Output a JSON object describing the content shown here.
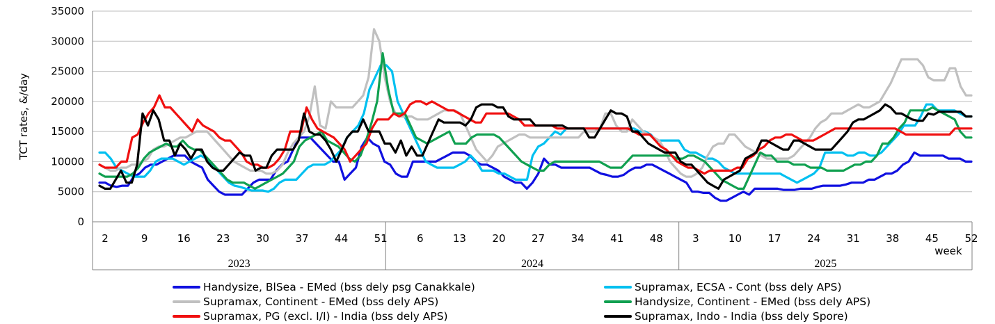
{
  "chart_data": {
    "type": "line",
    "ylabel": "TCT rates, &/day",
    "xlabel": "week",
    "ylim": [
      0,
      35000
    ],
    "yticks": [
      "0",
      "5000",
      "10000",
      "15000",
      "20000",
      "25000",
      "30000",
      "35000"
    ],
    "grid": "horizontal",
    "legend_position": "bottom",
    "weeks_per_year": 52,
    "years": [
      "2023",
      "2024",
      "2025"
    ],
    "week_ticks": [
      "2",
      "9",
      "16",
      "23",
      "30",
      "37",
      "44",
      "51",
      "6",
      "13",
      "20",
      "27",
      "34",
      "41",
      "48",
      "3",
      "10",
      "17",
      "24",
      "31",
      "38",
      "45",
      "52"
    ],
    "x_index_note_none": "",
    "series": [
      {
        "name": "Handysize, BlSea - EMed (bss dely psg Canakkale)",
        "color": "#1010e0",
        "values": [
          6500,
          6500,
          6000,
          5800,
          6000,
          6000,
          7500,
          8000,
          9000,
          9500,
          9500,
          10000,
          10500,
          11000,
          11000,
          11000,
          10000,
          9500,
          9000,
          7000,
          6000,
          5000,
          4500,
          4500,
          4500,
          4500,
          5500,
          6500,
          7000,
          7000,
          7000,
          8500,
          9500,
          10000,
          12000,
          14000,
          14000,
          14000,
          13000,
          12000,
          11000,
          10000,
          10000,
          7000,
          8000,
          9000,
          12500,
          14000,
          13000,
          12500,
          10000,
          9500,
          8000,
          7500,
          7500,
          10000,
          10000,
          10000,
          10000,
          10000,
          10500,
          11000,
          11500,
          11500,
          11500,
          11000,
          10000,
          9500,
          9500,
          9000,
          8500,
          7500,
          7000,
          6500,
          6500,
          5500,
          6500,
          8000,
          10500,
          9500,
          9500,
          9000,
          9000,
          9000,
          9000,
          9000,
          9000,
          8500,
          8000,
          7800,
          7500,
          7500,
          7800,
          8500,
          9000,
          9000,
          9500,
          9500,
          9000,
          8500,
          8000,
          7500,
          7000,
          6500,
          5000,
          5000,
          4800,
          4800,
          4000,
          3500,
          3500,
          4000,
          4500,
          5000,
          4500,
          5500,
          5500,
          5500,
          5500,
          5500,
          5300,
          5300,
          5300,
          5500,
          5500,
          5500,
          5800,
          6000,
          6000,
          6000,
          6000,
          6200,
          6500,
          6500,
          6500,
          7000,
          7000,
          7500,
          8000,
          8000,
          8500,
          9500,
          10000,
          11500,
          11000,
          11000,
          11000,
          11000,
          11000,
          10500,
          10500,
          10500,
          10000,
          10000
        ]
      },
      {
        "name": "Supramax, ECSA - Cont (bss dely APS)",
        "color": "#00c0f0",
        "values": [
          11500,
          11500,
          10500,
          9000,
          8500,
          8000,
          7500,
          7500,
          7500,
          8500,
          10000,
          10500,
          10500,
          10500,
          10000,
          9500,
          10000,
          10500,
          11000,
          10500,
          9500,
          8500,
          7500,
          6500,
          6000,
          5800,
          5500,
          5200,
          5200,
          5200,
          5000,
          5500,
          6500,
          7000,
          7000,
          7000,
          8000,
          9000,
          9500,
          9500,
          9500,
          10000,
          11000,
          12000,
          14000,
          15000,
          16000,
          18000,
          22000,
          24000,
          26000,
          26000,
          25000,
          20000,
          18000,
          16000,
          14000,
          12000,
          10000,
          9500,
          9000,
          9000,
          9000,
          9000,
          9500,
          10000,
          11000,
          10000,
          8500,
          8500,
          8500,
          8000,
          8000,
          7500,
          7000,
          7000,
          7000,
          11000,
          12500,
          13000,
          14000,
          15000,
          14500,
          15500,
          15500,
          15500,
          15500,
          15500,
          15500,
          15500,
          15500,
          15500,
          15500,
          15500,
          15500,
          15500,
          15000,
          15000,
          14500,
          13500,
          13500,
          13500,
          13500,
          13500,
          12000,
          11500,
          11500,
          11000,
          10500,
          10500,
          10000,
          9000,
          8500,
          8000,
          8000,
          8000,
          8000,
          8000,
          8000,
          8000,
          8000,
          8000,
          7500,
          7000,
          6500,
          7000,
          7500,
          8000,
          9000,
          11500,
          11500,
          11500,
          11500,
          11000,
          11000,
          11500,
          11500,
          11000,
          11000,
          11500,
          12500,
          13500,
          14500,
          16000,
          16000,
          16000,
          17500,
          19500,
          19500,
          18500,
          18500,
          18500,
          18500,
          18000,
          17500,
          17500
        ]
      },
      {
        "name": "Supramax, Continent - EMed (bss dely APS)",
        "color": "#c0c0c0",
        "values": [
          9500,
          9000,
          8500,
          8500,
          9000,
          9000,
          9500,
          9500,
          10000,
          10500,
          12000,
          12500,
          12500,
          13000,
          13500,
          14000,
          14000,
          14500,
          15000,
          15000,
          15000,
          14000,
          13000,
          12000,
          11000,
          10000,
          9500,
          9000,
          8500,
          8500,
          8500,
          8000,
          8000,
          8500,
          9500,
          11500,
          13000,
          14000,
          15000,
          17500,
          22500,
          16000,
          15500,
          20000,
          19000,
          19000,
          19000,
          19000,
          20000,
          21000,
          24000,
          32000,
          30000,
          24000,
          20000,
          18000,
          17500,
          17500,
          17500,
          17000,
          17000,
          17000,
          17500,
          18000,
          18500,
          18500,
          18500,
          18000,
          16000,
          14000,
          12000,
          11000,
          10000,
          11000,
          12500,
          13000,
          13500,
          14000,
          14500,
          14500,
          14000,
          14000,
          14000,
          14000,
          14000,
          14000,
          14000,
          14000,
          14000,
          14000,
          15000,
          15000,
          15000,
          15500,
          18000,
          18000,
          16000,
          15000,
          15000,
          17000,
          16000,
          15000,
          14500,
          14000,
          13500,
          12000,
          10000,
          9000,
          8000,
          7500,
          7500,
          8000,
          9000,
          11000,
          12500,
          13000,
          13000,
          14500,
          14500,
          13500,
          12500,
          12000,
          11500,
          11000,
          10500,
          10500,
          10500,
          10500,
          10500,
          11000,
          12000,
          13000,
          14000,
          15500,
          16500,
          17000,
          18000,
          18000,
          18000,
          18500,
          19000,
          19500,
          19000,
          19000,
          19500,
          20000,
          21500,
          23000,
          25000,
          27000,
          27000,
          27000,
          27000,
          26000,
          24000,
          23500,
          23500,
          23500,
          25500,
          25500,
          22500,
          21000,
          21000
        ]
      },
      {
        "name": "Handysize, Continent - EMed (bss dely APS)",
        "color": "#10a050",
        "values": [
          8000,
          7500,
          7500,
          7500,
          7500,
          7500,
          8000,
          9000,
          10500,
          11500,
          12000,
          12500,
          13000,
          12500,
          12500,
          13500,
          12500,
          12000,
          12000,
          11000,
          10000,
          9000,
          8000,
          7000,
          6500,
          6500,
          6500,
          6000,
          5500,
          6000,
          6500,
          7000,
          7500,
          8000,
          9000,
          10000,
          12500,
          13500,
          14000,
          14500,
          15000,
          13500,
          13000,
          12500,
          11500,
          10500,
          10000,
          11000,
          13500,
          16500,
          20000,
          28000,
          22000,
          18000,
          18000,
          18000,
          16000,
          14000,
          13500,
          13000,
          13500,
          14000,
          14500,
          15000,
          13000,
          13000,
          13000,
          14000,
          14500,
          14500,
          14500,
          14500,
          14000,
          13000,
          12000,
          11000,
          10000,
          9500,
          9000,
          8500,
          8500,
          9500,
          10000,
          10000,
          10000,
          10000,
          10000,
          10000,
          10000,
          10000,
          10000,
          9500,
          9000,
          9000,
          9000,
          10000,
          11000,
          11000,
          11000,
          11000,
          11000,
          11000,
          11000,
          11000,
          10500,
          10500,
          11000,
          11000,
          10500,
          10000,
          9000,
          8000,
          7000,
          6500,
          6000,
          5500,
          5500,
          7500,
          9500,
          11500,
          11000,
          11000,
          10000,
          10000,
          10000,
          9500,
          9500,
          9500,
          9000,
          9000,
          9000,
          8500,
          8500,
          8500,
          8500,
          9000,
          9500,
          9500,
          10000,
          10000,
          11000,
          13000,
          13000,
          14000,
          15500,
          16500,
          18500,
          18500,
          18500,
          18500,
          19000,
          18500,
          18000,
          17500,
          17000,
          15000,
          14000,
          14000
        ]
      },
      {
        "name": "Supramax, PG (excl. I/I) - India (bss dely APS)",
        "color": "#f01010",
        "values": [
          9500,
          9000,
          9000,
          9000,
          10000,
          10000,
          14000,
          14500,
          16500,
          18000,
          19000,
          21000,
          19000,
          19000,
          18000,
          17000,
          16000,
          15000,
          17000,
          16000,
          15500,
          15000,
          14000,
          13500,
          13500,
          12500,
          11500,
          10000,
          9500,
          9500,
          9000,
          9000,
          9500,
          10500,
          12000,
          15000,
          15000,
          15000,
          19000,
          17000,
          15500,
          15000,
          14500,
          14000,
          13000,
          12000,
          10000,
          11000,
          12000,
          13000,
          15500,
          17000,
          17000,
          17000,
          18000,
          17500,
          18000,
          19500,
          20000,
          20000,
          19500,
          20000,
          19500,
          19000,
          18500,
          18500,
          18000,
          17500,
          17000,
          16500,
          16500,
          18000,
          18000,
          18000,
          18000,
          18000,
          17500,
          17000,
          16000,
          16000,
          16000,
          16000,
          16000,
          16000,
          15500,
          15500,
          15500,
          15500,
          15500,
          15500,
          15500,
          15500,
          15500,
          15500,
          15500,
          15500,
          15500,
          15500,
          15000,
          14500,
          14500,
          14500,
          13500,
          12500,
          12000,
          11000,
          10000,
          9500,
          9000,
          9000,
          8500,
          8000,
          8500,
          8500,
          8500,
          8500,
          8500,
          9000,
          9000,
          10500,
          11000,
          12000,
          12500,
          13500,
          14000,
          14000,
          14500,
          14500,
          14000,
          13500,
          13500,
          13500,
          14000,
          14500,
          15000,
          15500,
          15500,
          15500,
          15500,
          15500,
          15500,
          15500,
          15500,
          15500,
          15500,
          15500,
          15500,
          15000,
          14500,
          14500,
          14500,
          14500,
          14500,
          14500,
          14500,
          14500,
          14500,
          15500,
          15500,
          15500,
          15500
        ]
      },
      {
        "name": "Supramax, Indo - India (bss dely Spore)",
        "color": "#000000",
        "values": [
          6000,
          5500,
          5500,
          7000,
          8500,
          6500,
          6500,
          9500,
          18000,
          16000,
          18500,
          17000,
          13500,
          13500,
          11000,
          13000,
          12000,
          10500,
          12000,
          12000,
          10000,
          9000,
          8500,
          8500,
          9500,
          10500,
          11500,
          11000,
          11000,
          8500,
          9000,
          9000,
          11000,
          12000,
          12000,
          12000,
          12000,
          13500,
          18000,
          15000,
          14500,
          14500,
          13500,
          12000,
          10000,
          12000,
          14000,
          15000,
          15000,
          17000,
          15000,
          15000,
          15000,
          13000,
          13000,
          11500,
          13500,
          11000,
          12500,
          11000,
          11000,
          13000,
          15000,
          17000,
          16500,
          16500,
          16500,
          16500,
          16000,
          17000,
          19000,
          19500,
          19500,
          19500,
          19000,
          19000,
          17500,
          17000,
          17000,
          17000,
          17000,
          16000,
          16000,
          16000,
          16000,
          16000,
          16000,
          15500,
          15500,
          15500,
          15500,
          14000,
          14000,
          15500,
          17000,
          18500,
          18000,
          18000,
          17500,
          15000,
          15000,
          14000,
          13000,
          12500,
          12000,
          11500,
          11500,
          11500,
          10000,
          9500,
          9500,
          8500,
          7500,
          6500,
          6000,
          5500,
          7000,
          7500,
          8000,
          8500,
          10500,
          11000,
          11500,
          13500,
          13500,
          13000,
          12500,
          12000,
          12000,
          13500,
          13500,
          13000,
          12500,
          12000,
          12000,
          12000,
          12000,
          13000,
          14000,
          15000,
          16500,
          17000,
          17000,
          17500,
          18000,
          18500,
          19500,
          19000,
          18000,
          18000,
          17500,
          17000,
          16800,
          16800,
          18000,
          17800,
          18300,
          18300,
          18300,
          18300,
          18300,
          17500,
          17500
        ]
      }
    ]
  }
}
